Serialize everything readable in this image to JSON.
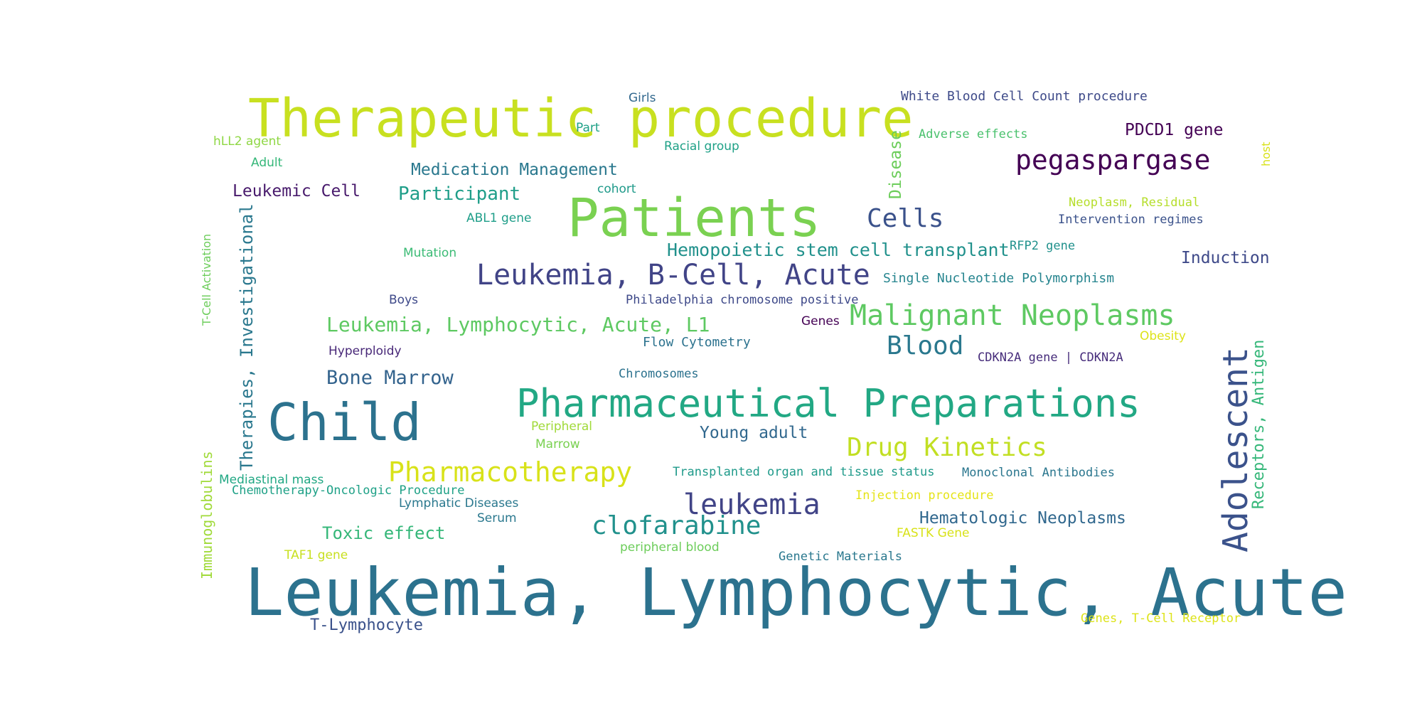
{
  "word_cloud": {
    "horizontal": [
      {
        "text": "Leukemia, Lymphocytic, Acute",
        "color": "#2c728e"
      },
      {
        "text": "Therapeutic procedure",
        "color": "#c8e020"
      },
      {
        "text": "Patients",
        "color": "#7ad151"
      },
      {
        "text": "Child",
        "color": "#2c728e"
      },
      {
        "text": "Pharmaceutical Preparations",
        "color": "#22a884"
      },
      {
        "text": "Leukemia, B-Cell, Acute",
        "color": "#414487"
      },
      {
        "text": "Malignant Neoplasms",
        "color": "#5ec962"
      },
      {
        "text": "pegaspargase",
        "color": "#440154"
      },
      {
        "text": "leukemia",
        "color": "#414487"
      },
      {
        "text": "Pharmacotherapy",
        "color": "#d8e219"
      },
      {
        "text": "clofarabine",
        "color": "#21918c"
      },
      {
        "text": "Drug Kinetics",
        "color": "#c2df23"
      },
      {
        "text": "Cells",
        "color": "#3b528b"
      },
      {
        "text": "Blood",
        "color": "#2a788e"
      },
      {
        "text": "Leukemia, Lymphocytic, Acute, L1",
        "color": "#5ec962"
      },
      {
        "text": "Hemopoietic stem cell transplant",
        "color": "#21918c"
      },
      {
        "text": "Participant",
        "color": "#1f9e89"
      },
      {
        "text": "Toxic effect",
        "color": "#35b779"
      },
      {
        "text": "Bone Marrow",
        "color": "#33638d"
      },
      {
        "text": "Young adult",
        "color": "#31688e"
      },
      {
        "text": "Hematologic Neoplasms",
        "color": "#31688e"
      },
      {
        "text": "PDCD1 gene",
        "color": "#440154"
      },
      {
        "text": "Induction",
        "color": "#3e4989"
      },
      {
        "text": "Leukemic Cell",
        "color": "#481a6c"
      },
      {
        "text": "T-Lymphocyte",
        "color": "#3b528b"
      },
      {
        "text": "White Blood Cell Count procedure",
        "color": "#3e4a89"
      },
      {
        "text": "Single Nucleotide Polymorphism",
        "color": "#25848e"
      },
      {
        "text": "Flow Cytometry",
        "color": "#2c728e"
      },
      {
        "text": "CDKN2A gene | CDKN2A",
        "color": "#472d7b"
      },
      {
        "text": "Transplanted organ and tissue status",
        "color": "#1f9a8a"
      },
      {
        "text": "Monoclonal Antibodies",
        "color": "#2a768e"
      },
      {
        "text": "Intervention regimes",
        "color": "#3b528b"
      },
      {
        "text": "Adverse effects",
        "color": "#4ac16d"
      },
      {
        "text": "Medication Management",
        "color": "#2a788e"
      },
      {
        "text": "Neoplasm, Residual",
        "color": "#b5de2b"
      },
      {
        "text": "RFP2 gene",
        "color": "#21918c"
      },
      {
        "text": "Philadelphia chromosome positive",
        "color": "#3e4989"
      },
      {
        "text": "Chemotherapy-Oncologic Procedure",
        "color": "#1fa187"
      },
      {
        "text": "Genes, T-Cell Receptor",
        "color": "#dde318"
      },
      {
        "text": "Genetic Materials",
        "color": "#2a788e"
      },
      {
        "text": "Injection procedure",
        "color": "#e5e419"
      },
      {
        "text": "Chromosomes",
        "color": "#2c728e"
      }
    ],
    "small": [
      {
        "text": "Girls",
        "color": "#31688e"
      },
      {
        "text": "Part",
        "color": "#1fa187"
      },
      {
        "text": "hLL2 agent",
        "color": "#8fd744"
      },
      {
        "text": "Adult",
        "color": "#35b779"
      },
      {
        "text": "cohort",
        "color": "#1f9a8a"
      },
      {
        "text": "ABL1 gene",
        "color": "#1f9e89"
      },
      {
        "text": "Mutation",
        "color": "#3bbb75"
      },
      {
        "text": "Boys",
        "color": "#3e4989"
      },
      {
        "text": "Hyperploidy",
        "color": "#482878"
      },
      {
        "text": "Genes",
        "color": "#440154"
      },
      {
        "text": "Obesity",
        "color": "#dde318"
      },
      {
        "text": "Racial group",
        "color": "#1fa187"
      },
      {
        "text": "Peripheral",
        "color": "#a0da39"
      },
      {
        "text": "Marrow",
        "color": "#7ad151"
      },
      {
        "text": "Mediastinal mass",
        "color": "#22a884"
      },
      {
        "text": "Lymphatic Diseases",
        "color": "#2a788e"
      },
      {
        "text": "Serum",
        "color": "#2a788e"
      },
      {
        "text": "peripheral blood",
        "color": "#6ccd5a"
      },
      {
        "text": "TAF1 gene",
        "color": "#c8e020"
      },
      {
        "text": "FASTK Gene",
        "color": "#d8e219"
      }
    ],
    "vertical": [
      {
        "text": "Adolescent",
        "color": "#3b528b"
      },
      {
        "text": "Therapies, Investigational",
        "color": "#2a788e"
      },
      {
        "text": "Disease",
        "color": "#6ccd5a"
      },
      {
        "text": "Receptors, Antigen",
        "color": "#35b779"
      },
      {
        "text": "Immunoglobulins",
        "color": "#a0da39"
      },
      {
        "text": "T-Cell Activation",
        "color": "#6ccd5a"
      },
      {
        "text": "host",
        "color": "#d8e219"
      }
    ]
  }
}
